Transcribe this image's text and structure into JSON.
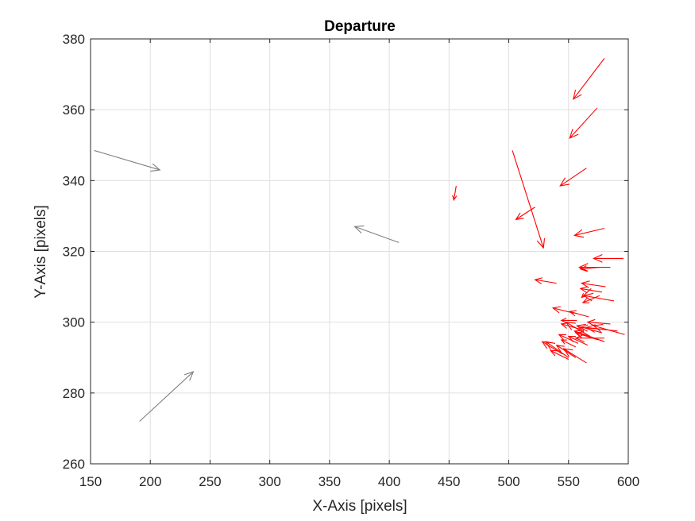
{
  "chart_data": {
    "type": "quiver",
    "title": "Departure",
    "xlabel": "X-Axis [pixels]",
    "ylabel": "Y-Axis [pixels]",
    "xlim": [
      150,
      600
    ],
    "ylim": [
      260,
      380
    ],
    "xticks": [
      150,
      200,
      250,
      300,
      350,
      400,
      450,
      500,
      550,
      600
    ],
    "yticks": [
      260,
      280,
      300,
      320,
      340,
      360,
      380
    ],
    "grid": true,
    "colors": {
      "gray": "#808080",
      "red": "#ff0000"
    },
    "series": [
      {
        "color": "gray",
        "vectors": [
          {
            "x": 153,
            "y": 348.5,
            "x2": 208,
            "y2": 343
          },
          {
            "x": 408,
            "y": 322.5,
            "x2": 371,
            "y2": 327
          },
          {
            "x": 191,
            "y": 272,
            "x2": 236,
            "y2": 286
          }
        ]
      },
      {
        "color": "red",
        "vectors": [
          {
            "x": 580,
            "y": 374.5,
            "x2": 554,
            "y2": 363
          },
          {
            "x": 574,
            "y": 360.5,
            "x2": 551,
            "y2": 352
          },
          {
            "x": 565,
            "y": 343.5,
            "x2": 543,
            "y2": 338.5
          },
          {
            "x": 456,
            "y": 338.5,
            "x2": 454,
            "y2": 334.5
          },
          {
            "x": 503,
            "y": 348.5,
            "x2": 529,
            "y2": 321
          },
          {
            "x": 522,
            "y": 332.5,
            "x2": 506,
            "y2": 329
          },
          {
            "x": 580,
            "y": 326.5,
            "x2": 555,
            "y2": 324.5
          },
          {
            "x": 596,
            "y": 318,
            "x2": 571,
            "y2": 318
          },
          {
            "x": 585,
            "y": 315.5,
            "x2": 559,
            "y2": 315.5
          },
          {
            "x": 576,
            "y": 315.5,
            "x2": 560,
            "y2": 315
          },
          {
            "x": 540,
            "y": 311,
            "x2": 522,
            "y2": 312
          },
          {
            "x": 581,
            "y": 310,
            "x2": 561,
            "y2": 311
          },
          {
            "x": 578,
            "y": 308.5,
            "x2": 560,
            "y2": 309.5
          },
          {
            "x": 588,
            "y": 306,
            "x2": 563,
            "y2": 307.5
          },
          {
            "x": 576,
            "y": 307.5,
            "x2": 562,
            "y2": 305.5
          },
          {
            "x": 569,
            "y": 309.5,
            "x2": 561,
            "y2": 307
          },
          {
            "x": 555,
            "y": 302.5,
            "x2": 537,
            "y2": 304
          },
          {
            "x": 567,
            "y": 301.5,
            "x2": 551,
            "y2": 303
          },
          {
            "x": 585,
            "y": 299.5,
            "x2": 566,
            "y2": 300
          },
          {
            "x": 591,
            "y": 297.5,
            "x2": 565,
            "y2": 298.5
          },
          {
            "x": 597,
            "y": 296.5,
            "x2": 571,
            "y2": 299
          },
          {
            "x": 579,
            "y": 298,
            "x2": 560,
            "y2": 298.5
          },
          {
            "x": 578,
            "y": 297,
            "x2": 557,
            "y2": 299
          },
          {
            "x": 580,
            "y": 294.5,
            "x2": 555,
            "y2": 297.5
          },
          {
            "x": 575,
            "y": 295,
            "x2": 556,
            "y2": 297
          },
          {
            "x": 580,
            "y": 295.5,
            "x2": 556,
            "y2": 295.5
          },
          {
            "x": 568,
            "y": 296,
            "x2": 548,
            "y2": 300
          },
          {
            "x": 560,
            "y": 298,
            "x2": 544,
            "y2": 299.5
          },
          {
            "x": 557,
            "y": 300.5,
            "x2": 544,
            "y2": 300.5
          },
          {
            "x": 566,
            "y": 293.5,
            "x2": 550,
            "y2": 296
          },
          {
            "x": 558,
            "y": 294,
            "x2": 542,
            "y2": 296.5
          },
          {
            "x": 550,
            "y": 290,
            "x2": 531,
            "y2": 294.5
          },
          {
            "x": 565,
            "y": 288.5,
            "x2": 546,
            "y2": 292.5
          },
          {
            "x": 556,
            "y": 290,
            "x2": 540,
            "y2": 293.5
          },
          {
            "x": 550,
            "y": 289.5,
            "x2": 535,
            "y2": 292
          },
          {
            "x": 545,
            "y": 291,
            "x2": 528,
            "y2": 294.5
          },
          {
            "x": 556,
            "y": 293,
            "x2": 544,
            "y2": 295
          }
        ]
      }
    ]
  }
}
